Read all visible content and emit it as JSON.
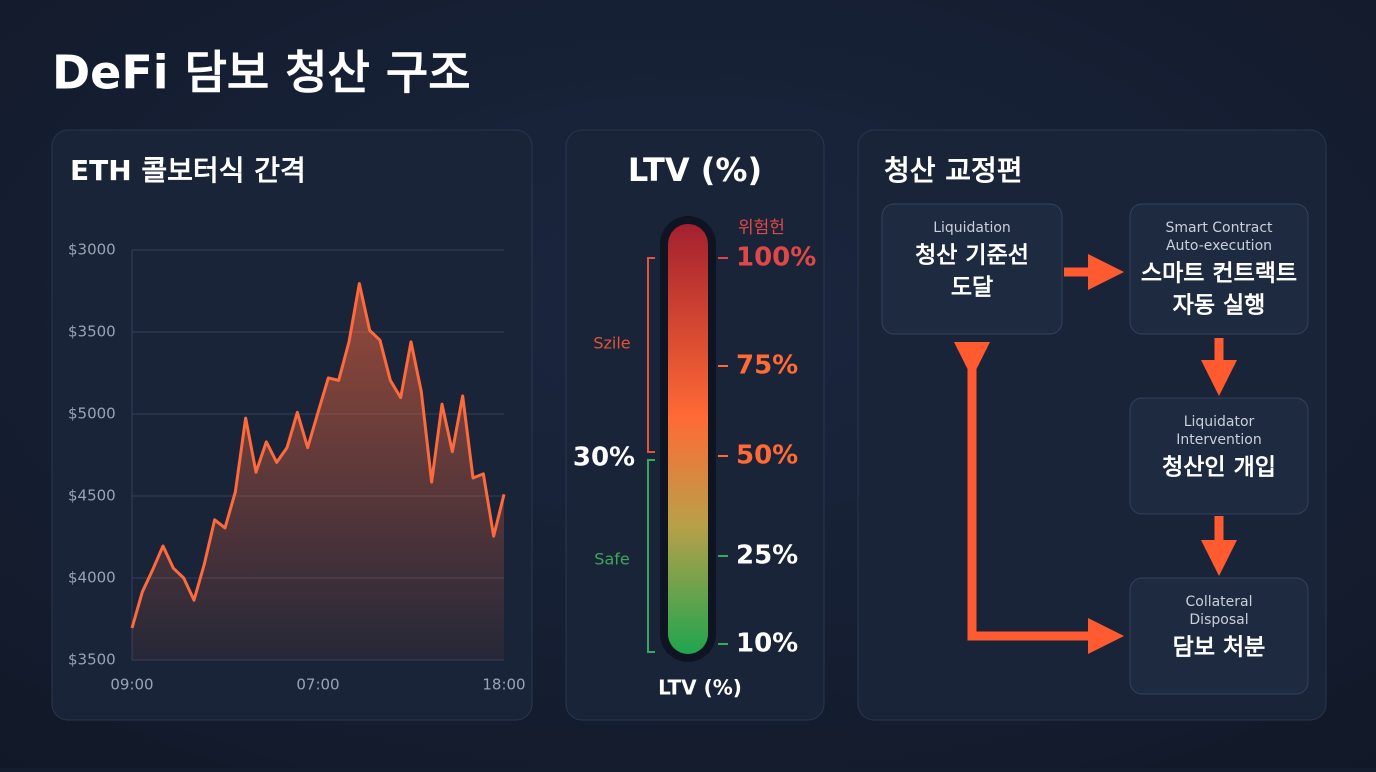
{
  "title": "DeFi 담보 청산 구조",
  "chart_data": {
    "type": "line",
    "title": "ETH 콜보터식 간격",
    "y_labels": [
      "$3500",
      "$4000",
      "$4500",
      "$5000",
      "$3500",
      "$3000"
    ],
    "ylim": [
      0,
      5
    ],
    "yticks": [
      0,
      1,
      2,
      3,
      4,
      5
    ],
    "grid": true,
    "categories": [
      "09:00",
      null,
      null,
      null,
      null,
      null,
      null,
      null,
      null,
      null,
      null,
      null,
      null,
      null,
      null,
      null,
      null,
      null,
      "07:00",
      null,
      null,
      null,
      null,
      null,
      null,
      null,
      null,
      null,
      null,
      null,
      null,
      null,
      null,
      null,
      null,
      null,
      "18:00"
    ],
    "series": [
      {
        "name": "ETH",
        "color": "#ff6a3d",
        "values": [
          0.39,
          0.83,
          1.1,
          1.39,
          1.12,
          1.0,
          0.73,
          1.17,
          1.71,
          1.61,
          2.05,
          2.95,
          2.29,
          2.66,
          2.41,
          2.59,
          3.02,
          2.59,
          3.02,
          3.44,
          3.41,
          3.88,
          4.59,
          4.02,
          3.9,
          3.41,
          3.2,
          3.88,
          3.27,
          2.17,
          3.12,
          2.54,
          3.22,
          2.22,
          2.27,
          1.51,
          2.02
        ]
      }
    ]
  },
  "ltv": {
    "title": "LTV (%)",
    "danger_label": "위험헌",
    "ticks": [
      "100%",
      "75%",
      "50%",
      "25%",
      "10%"
    ],
    "warn_label": "Szile",
    "safe_label": "Safe",
    "threshold": "30%",
    "axis_label": "LTV (%)"
  },
  "flow": {
    "title": "청산 교정편",
    "nodes": [
      {
        "en": "Liquidation",
        "ko": [
          "청산 기준선",
          "도달"
        ]
      },
      {
        "en": "Smart Contract Auto-execution",
        "ko": [
          "스마트 컨트랙트",
          "자동 실행"
        ]
      },
      {
        "en": "Liquidator Intervention",
        "ko": [
          "청산인 개입"
        ]
      },
      {
        "en": "Collateral Disposal",
        "ko": [
          "담보 처분"
        ]
      }
    ]
  }
}
